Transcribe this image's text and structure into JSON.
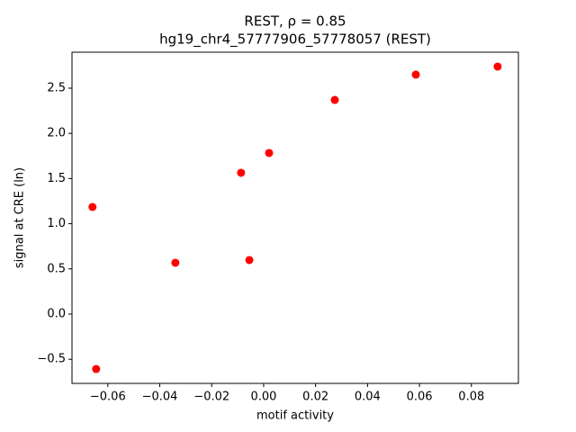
{
  "chart_data": {
    "type": "scatter",
    "title": "REST, ρ = 0.85",
    "subtitle": "hg19_chr4_57777906_57778057 (REST)",
    "xlabel": "motif activity",
    "ylabel": "signal at CRE (ln)",
    "color": "#ff0000",
    "x": [
      -0.0659,
      -0.0645,
      -0.034,
      -0.0087,
      -0.0055,
      0.0021,
      0.0274,
      0.0586,
      0.0901
    ],
    "values": [
      1.185,
      -0.608,
      0.568,
      1.564,
      0.598,
      1.783,
      2.37,
      2.65,
      2.739
    ],
    "xlim": [
      -0.0738,
      0.0981
    ],
    "ylim": [
      -0.767,
      2.898
    ],
    "xticks": [
      {
        "value": -0.06,
        "label": "−0.06"
      },
      {
        "value": -0.04,
        "label": "−0.04"
      },
      {
        "value": -0.02,
        "label": "−0.02"
      },
      {
        "value": 0,
        "label": "0.00"
      },
      0.02,
      0.04,
      0.06,
      0.08
    ],
    "yticks": [
      {
        "value": -0.5,
        "label": "−0.5"
      },
      {
        "value": 0,
        "label": "0.0"
      },
      0.5,
      {
        "value": 1,
        "label": "1.0"
      },
      1.5,
      {
        "value": 2,
        "label": "2.0"
      },
      2.5
    ],
    "grid": false
  }
}
